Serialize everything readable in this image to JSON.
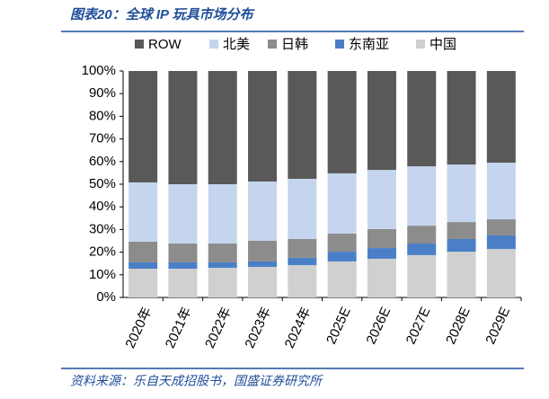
{
  "chart_data": {
    "type": "stacked_bar",
    "title": "图表20：全球 IP 玩具市场分布",
    "source": "资料来源：乐自天成招股书，国盛证券研究所",
    "categories": [
      "2020年",
      "2021年",
      "2022年",
      "2023年",
      "2024年",
      "2025E",
      "2026E",
      "2027E",
      "2028E",
      "2029E"
    ],
    "series": [
      {
        "name": "ROW",
        "color": "#595959",
        "values": [
          49.2,
          50.0,
          50.0,
          48.8,
          47.6,
          45.2,
          43.7,
          42.1,
          41.3,
          40.5
        ]
      },
      {
        "name": "北美",
        "color": "#c5d5ee",
        "values": [
          26.2,
          26.2,
          26.2,
          26.2,
          26.6,
          26.6,
          26.1,
          26.2,
          25.4,
          25.0
        ]
      },
      {
        "name": "日韩",
        "color": "#8c8c8c",
        "values": [
          9.1,
          8.3,
          8.3,
          9.1,
          8.3,
          8.0,
          8.4,
          7.9,
          7.5,
          7.1
        ]
      },
      {
        "name": "东南亚",
        "color": "#4a7fc8",
        "values": [
          2.8,
          2.8,
          2.4,
          2.4,
          3.2,
          4.3,
          4.7,
          5.1,
          5.6,
          6.0
        ]
      },
      {
        "name": "中国",
        "color": "#d0d0d0",
        "values": [
          12.7,
          12.7,
          13.1,
          13.5,
          14.3,
          15.9,
          17.1,
          18.7,
          20.2,
          21.4
        ]
      }
    ],
    "ylim": [
      0,
      100
    ],
    "yticks": [
      {
        "value": 0,
        "label": "0%"
      },
      {
        "value": 10,
        "label": "10%"
      },
      {
        "value": 20,
        "label": "20%"
      },
      {
        "value": 30,
        "label": "30%"
      },
      {
        "value": 40,
        "label": "40%"
      },
      {
        "value": 50,
        "label": "50%"
      },
      {
        "value": 60,
        "label": "60%"
      },
      {
        "value": 70,
        "label": "70%"
      },
      {
        "value": 80,
        "label": "80%"
      },
      {
        "value": 90,
        "label": "90%"
      },
      {
        "value": 100,
        "label": "100%"
      }
    ],
    "grid": false,
    "legend": "top"
  }
}
